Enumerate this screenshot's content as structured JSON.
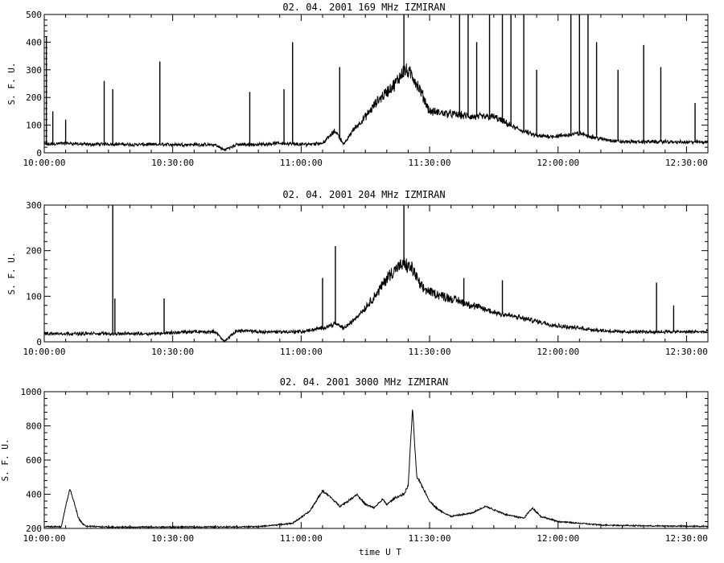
{
  "chart_data": [
    {
      "type": "line",
      "title": "02. 04. 2001    169 MHz    IZMIRAN",
      "ylabel": "S. F. U.",
      "xlabel": "",
      "x_unit": "UT",
      "xlim": [
        "10:00:00",
        "12:35:00"
      ],
      "ylim": [
        0,
        500
      ],
      "yticks": [
        0,
        100,
        200,
        300,
        400,
        500
      ],
      "xticks": [
        "10:00:00",
        "10:30:00",
        "11:00:00",
        "11:30:00",
        "12:00:00",
        "12:30:00"
      ],
      "grid": false,
      "series": [
        {
          "x": [
            "10:00:00",
            "10:05:00",
            "10:10:00",
            "10:15:00",
            "10:20:00",
            "10:25:00",
            "10:30:00",
            "10:35:00",
            "10:40:00",
            "10:42:00",
            "10:45:00",
            "10:50:00",
            "10:55:00",
            "11:00:00",
            "11:05:00",
            "11:08:00",
            "11:10:00",
            "11:12:00",
            "11:15:00",
            "11:18:00",
            "11:20:00",
            "11:22:00",
            "11:24:00",
            "11:26:00",
            "11:28:00",
            "11:30:00",
            "11:35:00",
            "11:40:00",
            "11:45:00",
            "11:50:00",
            "11:55:00",
            "12:00:00",
            "12:05:00",
            "12:10:00",
            "12:15:00",
            "12:20:00",
            "12:25:00",
            "12:30:00",
            "12:35:00"
          ],
          "values": [
            30,
            35,
            30,
            32,
            30,
            30,
            30,
            30,
            28,
            10,
            30,
            30,
            35,
            30,
            35,
            80,
            30,
            80,
            130,
            190,
            220,
            250,
            300,
            280,
            220,
            150,
            140,
            130,
            130,
            90,
            60,
            60,
            70,
            50,
            40,
            40,
            40,
            38,
            40
          ]
        }
      ],
      "spikes": [
        {
          "x": "10:00:30",
          "y": 420
        },
        {
          "x": "10:02:00",
          "y": 150
        },
        {
          "x": "10:05:00",
          "y": 120
        },
        {
          "x": "10:14:00",
          "y": 260
        },
        {
          "x": "10:16:00",
          "y": 230
        },
        {
          "x": "10:27:00",
          "y": 330
        },
        {
          "x": "10:48:00",
          "y": 220
        },
        {
          "x": "10:56:00",
          "y": 230
        },
        {
          "x": "10:58:00",
          "y": 400
        },
        {
          "x": "11:09:00",
          "y": 310
        },
        {
          "x": "11:24:00",
          "y": 500
        },
        {
          "x": "11:37:00",
          "y": 500
        },
        {
          "x": "11:39:00",
          "y": 500
        },
        {
          "x": "11:41:00",
          "y": 400
        },
        {
          "x": "11:44:00",
          "y": 500
        },
        {
          "x": "11:47:00",
          "y": 500
        },
        {
          "x": "11:49:00",
          "y": 500
        },
        {
          "x": "11:52:00",
          "y": 500
        },
        {
          "x": "11:55:00",
          "y": 300
        },
        {
          "x": "12:03:00",
          "y": 500
        },
        {
          "x": "12:05:00",
          "y": 500
        },
        {
          "x": "12:07:00",
          "y": 500
        },
        {
          "x": "12:09:00",
          "y": 400
        },
        {
          "x": "12:14:00",
          "y": 300
        },
        {
          "x": "12:20:00",
          "y": 390
        },
        {
          "x": "12:24:00",
          "y": 310
        },
        {
          "x": "12:32:00",
          "y": 180
        }
      ]
    },
    {
      "type": "line",
      "title": "02. 04. 2001    204 MHz    IZMIRAN",
      "ylabel": "S. F. U.",
      "xlabel": "",
      "x_unit": "UT",
      "xlim": [
        "10:00:00",
        "12:35:00"
      ],
      "ylim": [
        0,
        300
      ],
      "yticks": [
        0,
        100,
        200,
        300
      ],
      "xticks": [
        "10:00:00",
        "10:30:00",
        "11:00:00",
        "11:30:00",
        "12:00:00",
        "12:30:00"
      ],
      "grid": false,
      "series": [
        {
          "x": [
            "10:00:00",
            "10:05:00",
            "10:10:00",
            "10:15:00",
            "10:20:00",
            "10:25:00",
            "10:30:00",
            "10:35:00",
            "10:40:00",
            "10:42:00",
            "10:45:00",
            "10:50:00",
            "10:55:00",
            "11:00:00",
            "11:05:00",
            "11:08:00",
            "11:10:00",
            "11:12:00",
            "11:15:00",
            "11:18:00",
            "11:20:00",
            "11:22:00",
            "11:24:00",
            "11:26:00",
            "11:28:00",
            "11:30:00",
            "11:35:00",
            "11:40:00",
            "11:45:00",
            "11:50:00",
            "11:55:00",
            "12:00:00",
            "12:05:00",
            "12:10:00",
            "12:15:00",
            "12:20:00",
            "12:25:00",
            "12:30:00",
            "12:35:00"
          ],
          "values": [
            18,
            18,
            18,
            18,
            18,
            18,
            20,
            22,
            22,
            0,
            25,
            22,
            22,
            22,
            30,
            40,
            30,
            45,
            75,
            110,
            140,
            160,
            170,
            160,
            120,
            110,
            95,
            80,
            65,
            55,
            45,
            35,
            30,
            25,
            22,
            22,
            22,
            22,
            22
          ]
        }
      ],
      "spikes": [
        {
          "x": "10:16:00",
          "y": 300
        },
        {
          "x": "10:16:30",
          "y": 95
        },
        {
          "x": "10:28:00",
          "y": 95
        },
        {
          "x": "11:05:00",
          "y": 140
        },
        {
          "x": "11:08:00",
          "y": 210
        },
        {
          "x": "11:24:00",
          "y": 300
        },
        {
          "x": "11:38:00",
          "y": 140
        },
        {
          "x": "11:47:00",
          "y": 135
        },
        {
          "x": "12:23:00",
          "y": 130
        },
        {
          "x": "12:27:00",
          "y": 80
        }
      ]
    },
    {
      "type": "line",
      "title": "02. 04. 2001    3000 MHz    IZMIRAN",
      "ylabel": "S. F. U.",
      "xlabel": "time  U T",
      "x_unit": "UT",
      "xlim": [
        "10:00:00",
        "12:35:00"
      ],
      "ylim": [
        200,
        1000
      ],
      "yticks": [
        200,
        400,
        600,
        800,
        1000
      ],
      "xticks": [
        "10:00:00",
        "10:30:00",
        "11:00:00",
        "11:30:00",
        "12:00:00",
        "12:30:00"
      ],
      "grid": false,
      "series": [
        {
          "x": [
            "10:00:00",
            "10:04:00",
            "10:05:00",
            "10:06:00",
            "10:07:00",
            "10:08:00",
            "10:09:00",
            "10:10:00",
            "10:15:00",
            "10:30:00",
            "10:50:00",
            "10:58:00",
            "11:02:00",
            "11:05:00",
            "11:07:00",
            "11:09:00",
            "11:11:00",
            "11:13:00",
            "11:15:00",
            "11:17:00",
            "11:19:00",
            "11:20:00",
            "11:22:00",
            "11:24:00",
            "11:25:00",
            "11:26:00",
            "11:27:00",
            "11:28:00",
            "11:30:00",
            "11:32:00",
            "11:35:00",
            "11:40:00",
            "11:43:00",
            "11:48:00",
            "11:52:00",
            "11:54:00",
            "11:56:00",
            "12:00:00",
            "12:10:00",
            "12:20:00",
            "12:35:00"
          ],
          "values": [
            210,
            210,
            330,
            430,
            350,
            260,
            225,
            212,
            208,
            208,
            210,
            230,
            300,
            420,
            380,
            330,
            360,
            400,
            340,
            320,
            370,
            340,
            380,
            400,
            450,
            900,
            500,
            460,
            360,
            310,
            270,
            290,
            330,
            280,
            260,
            320,
            270,
            240,
            220,
            215,
            212
          ]
        }
      ]
    }
  ]
}
